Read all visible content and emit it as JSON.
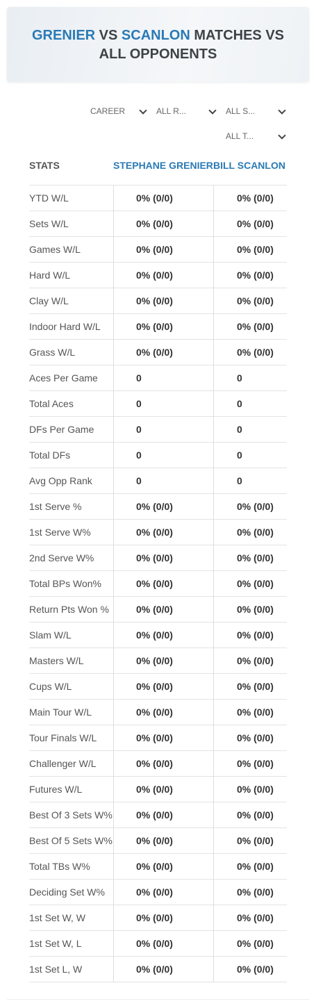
{
  "header": {
    "title_parts": [
      "GRENIER",
      " VS ",
      "SCANLON",
      " MATCHES VS",
      "ALL OPPONENTS"
    ]
  },
  "filters": [
    "CAREER",
    "ALL R...",
    "ALL S...",
    "ALL T..."
  ],
  "table": {
    "columns": [
      "STATS",
      "STEPHANE GRENIER",
      "BILL SCANLON"
    ],
    "rows": [
      [
        "YTD W/L",
        "0% (0/0)",
        "0% (0/0)"
      ],
      [
        "Sets W/L",
        "0% (0/0)",
        "0% (0/0)"
      ],
      [
        "Games W/L",
        "0% (0/0)",
        "0% (0/0)"
      ],
      [
        "Hard W/L",
        "0% (0/0)",
        "0% (0/0)"
      ],
      [
        "Clay W/L",
        "0% (0/0)",
        "0% (0/0)"
      ],
      [
        "Indoor Hard W/L",
        "0% (0/0)",
        "0% (0/0)"
      ],
      [
        "Grass W/L",
        "0% (0/0)",
        "0% (0/0)"
      ],
      [
        "Aces Per Game",
        0,
        0
      ],
      [
        "Total Aces",
        0,
        0
      ],
      [
        "DFs Per Game",
        0,
        0
      ],
      [
        "Total DFs",
        0,
        0
      ],
      [
        "Avg Opp Rank",
        0,
        0
      ],
      [
        "1st Serve %",
        "0% (0/0)",
        "0% (0/0)"
      ],
      [
        "1st Serve W%",
        "0% (0/0)",
        "0% (0/0)"
      ],
      [
        "2nd Serve W%",
        "0% (0/0)",
        "0% (0/0)"
      ],
      [
        "Total BPs Won%",
        "0% (0/0)",
        "0% (0/0)"
      ],
      [
        "Return Pts Won %",
        "0% (0/0)",
        "0% (0/0)"
      ],
      [
        "Slam W/L",
        "0% (0/0)",
        "0% (0/0)"
      ],
      [
        "Masters W/L",
        "0% (0/0)",
        "0% (0/0)"
      ],
      [
        "Cups W/L",
        "0% (0/0)",
        "0% (0/0)"
      ],
      [
        "Main Tour W/L",
        "0% (0/0)",
        "0% (0/0)"
      ],
      [
        "Tour Finals W/L",
        "0% (0/0)",
        "0% (0/0)"
      ],
      [
        "Challenger W/L",
        "0% (0/0)",
        "0% (0/0)"
      ],
      [
        "Futures W/L",
        "0% (0/0)",
        "0% (0/0)"
      ],
      [
        "Best Of 3 Sets W%",
        "0% (0/0)",
        "0% (0/0)"
      ],
      [
        "Best Of 5 Sets W%",
        "0% (0/0)",
        "0% (0/0)"
      ],
      [
        "Total TBs W%",
        "0% (0/0)",
        "0% (0/0)"
      ],
      [
        "Deciding Set W%",
        "0% (0/0)",
        "0% (0/0)"
      ],
      [
        "1st Set W, W",
        "0% (0/0)",
        "0% (0/0)"
      ],
      [
        "1st Set W, L",
        "0% (0/0)",
        "0% (0/0)"
      ],
      [
        "1st Set L, W",
        "0% (0/0)",
        "0% (0/0)"
      ]
    ]
  }
}
